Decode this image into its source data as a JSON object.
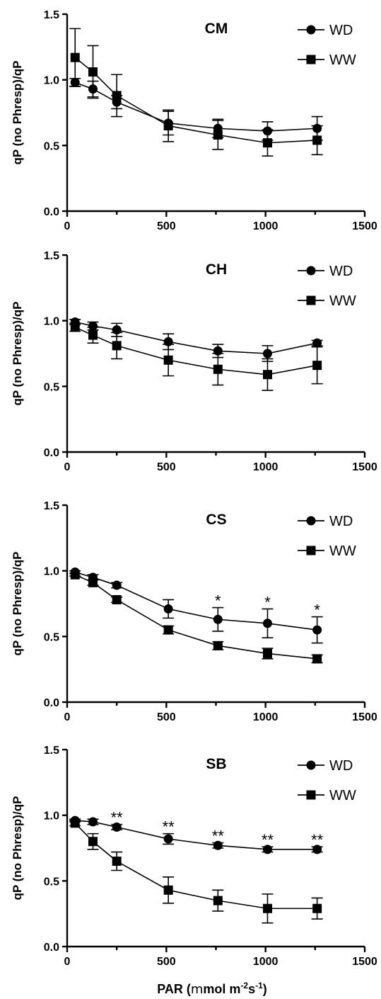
{
  "chart_data": [
    {
      "type": "line",
      "title": "CM",
      "ylabel": "qP (no Phresp)/qP",
      "xlabel": "",
      "xlim": [
        0,
        1500
      ],
      "ylim": [
        0,
        1.5
      ],
      "xticks": [
        "0",
        "500",
        "1000",
        "1500"
      ],
      "yticks": [
        "0.0",
        "0.5",
        "1.0",
        "1.5"
      ],
      "legend_position": "top-right",
      "x": [
        40,
        130,
        250,
        510,
        760,
        1010,
        1260
      ],
      "series": [
        {
          "name": "WD",
          "marker": "circle",
          "values": [
            0.98,
            0.93,
            0.83,
            0.67,
            0.63,
            0.61,
            0.63
          ],
          "errors": [
            0.03,
            0.06,
            0.05,
            0.09,
            0.07,
            0.07,
            0.09
          ]
        },
        {
          "name": "WW",
          "marker": "square",
          "values": [
            1.17,
            1.06,
            0.88,
            0.65,
            0.58,
            0.52,
            0.54
          ],
          "errors": [
            0.22,
            0.2,
            0.16,
            0.12,
            0.11,
            0.1,
            0.11
          ]
        }
      ],
      "significance": []
    },
    {
      "type": "line",
      "title": "CH",
      "ylabel": "qP (no Phresp)/qP",
      "xlabel": "",
      "xlim": [
        0,
        1500
      ],
      "ylim": [
        0,
        1.5
      ],
      "xticks": [
        "0",
        "500",
        "1000",
        "1500"
      ],
      "yticks": [
        "0.0",
        "0.5",
        "1.0",
        "1.5"
      ],
      "legend_position": "top-right",
      "x": [
        40,
        130,
        250,
        510,
        760,
        1010,
        1260
      ],
      "series": [
        {
          "name": "WD",
          "marker": "circle",
          "values": [
            0.99,
            0.96,
            0.93,
            0.84,
            0.77,
            0.75,
            0.83
          ],
          "errors": [
            0.02,
            0.03,
            0.05,
            0.06,
            0.05,
            0.06,
            0.02
          ]
        },
        {
          "name": "WW",
          "marker": "square",
          "values": [
            0.95,
            0.89,
            0.81,
            0.7,
            0.63,
            0.59,
            0.66
          ],
          "errors": [
            0.03,
            0.06,
            0.1,
            0.12,
            0.12,
            0.12,
            0.14
          ]
        }
      ],
      "significance": []
    },
    {
      "type": "line",
      "title": "CS",
      "ylabel": "qP (no Phresp)/qP",
      "xlabel": "",
      "xlim": [
        0,
        1500
      ],
      "ylim": [
        0,
        1.5
      ],
      "xticks": [
        "0",
        "500",
        "1000",
        "1500"
      ],
      "yticks": [
        "0.0",
        "0.5",
        "1.0",
        "1.5"
      ],
      "legend_position": "top-right",
      "x": [
        40,
        130,
        250,
        510,
        760,
        1010,
        1260
      ],
      "series": [
        {
          "name": "WD",
          "marker": "circle",
          "values": [
            0.99,
            0.95,
            0.89,
            0.71,
            0.63,
            0.6,
            0.55
          ],
          "errors": [
            0.01,
            0.02,
            0.02,
            0.07,
            0.09,
            0.11,
            0.1
          ]
        },
        {
          "name": "WW",
          "marker": "square",
          "values": [
            0.97,
            0.91,
            0.78,
            0.55,
            0.43,
            0.37,
            0.33
          ],
          "errors": [
            0.01,
            0.02,
            0.02,
            0.03,
            0.03,
            0.04,
            0.03
          ]
        }
      ],
      "significance": [
        {
          "x": 760,
          "label": "*"
        },
        {
          "x": 1010,
          "label": "*"
        },
        {
          "x": 1260,
          "label": "*"
        }
      ]
    },
    {
      "type": "line",
      "title": "SB",
      "ylabel": "qP (no Phresp)/qP",
      "xlabel": "PAR (mmol m-2s-1)",
      "xlim": [
        0,
        1500
      ],
      "ylim": [
        0,
        1.5
      ],
      "xticks": [
        "0",
        "500",
        "1000",
        "1500"
      ],
      "yticks": [
        "0.0",
        "0.5",
        "1.0",
        "1.5"
      ],
      "legend_position": "top-right",
      "x": [
        40,
        130,
        250,
        510,
        760,
        1010,
        1260
      ],
      "series": [
        {
          "name": "WD",
          "marker": "circle",
          "values": [
            0.96,
            0.95,
            0.91,
            0.82,
            0.77,
            0.74,
            0.74
          ],
          "errors": [
            0.01,
            0.02,
            0.02,
            0.04,
            0.02,
            0.02,
            0.02
          ]
        },
        {
          "name": "WW",
          "marker": "square",
          "values": [
            0.94,
            0.8,
            0.65,
            0.43,
            0.35,
            0.29,
            0.29
          ],
          "errors": [
            0.02,
            0.06,
            0.07,
            0.1,
            0.08,
            0.11,
            0.08
          ]
        }
      ],
      "significance": [
        {
          "x": 250,
          "label": "**"
        },
        {
          "x": 510,
          "label": "**"
        },
        {
          "x": 760,
          "label": "**"
        },
        {
          "x": 1010,
          "label": "**"
        },
        {
          "x": 1260,
          "label": "**"
        }
      ]
    }
  ],
  "xlabel_parts": {
    "prefix": "PAR (",
    "mu": "m",
    "unit": "mol m",
    "exp1": "-2",
    "mid": "s",
    "exp2": "-1",
    "suffix": ")"
  }
}
